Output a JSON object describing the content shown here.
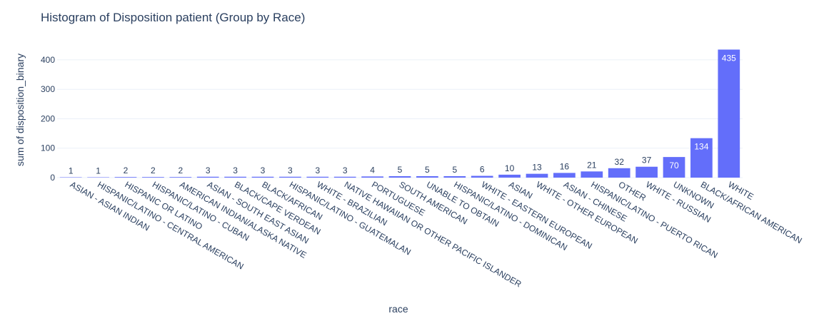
{
  "chart_data": {
    "type": "bar",
    "title": "Histogram of Disposition patient (Group by Race)",
    "xlabel": "race",
    "ylabel": "sum of disposition_binary",
    "ylim": [
      0,
      458
    ],
    "yticks": [
      0,
      100,
      200,
      300,
      400
    ],
    "grid": true,
    "bar_color": "#636efa",
    "categories": [
      "ASIAN - ASIAN INDIAN",
      "HISPANIC/LATINO - CENTRAL AMERICAN",
      "HISPANIC OR LATINO",
      "HISPANIC/LATINO - CUBAN",
      "AMERICAN INDIAN/ALASKA NATIVE",
      "ASIAN - SOUTH EAST ASIAN",
      "BLACK/CAPE VERDEAN",
      "BLACK/AFRICAN",
      "HISPANIC/LATINO - GUATEMALAN",
      "WHITE - BRAZILIAN",
      "NATIVE HAWAIIAN OR OTHER PACIFIC ISLANDER",
      "PORTUGUESE",
      "SOUTH AMERICAN",
      "UNABLE TO OBTAIN",
      "HISPANIC/LATINO - DOMINICAN",
      "WHITE - EASTERN EUROPEAN",
      "ASIAN",
      "WHITE - OTHER EUROPEAN",
      "ASIAN - CHINESE",
      "HISPANIC/LATINO - PUERTO RICAN",
      "OTHER",
      "WHITE - RUSSIAN",
      "UNKNOWN",
      "BLACK/AFRICAN AMERICAN",
      "WHITE"
    ],
    "values": [
      1,
      1,
      2,
      2,
      2,
      3,
      3,
      3,
      3,
      3,
      3,
      4,
      5,
      5,
      5,
      6,
      10,
      13,
      16,
      21,
      32,
      37,
      70,
      134,
      435
    ]
  }
}
